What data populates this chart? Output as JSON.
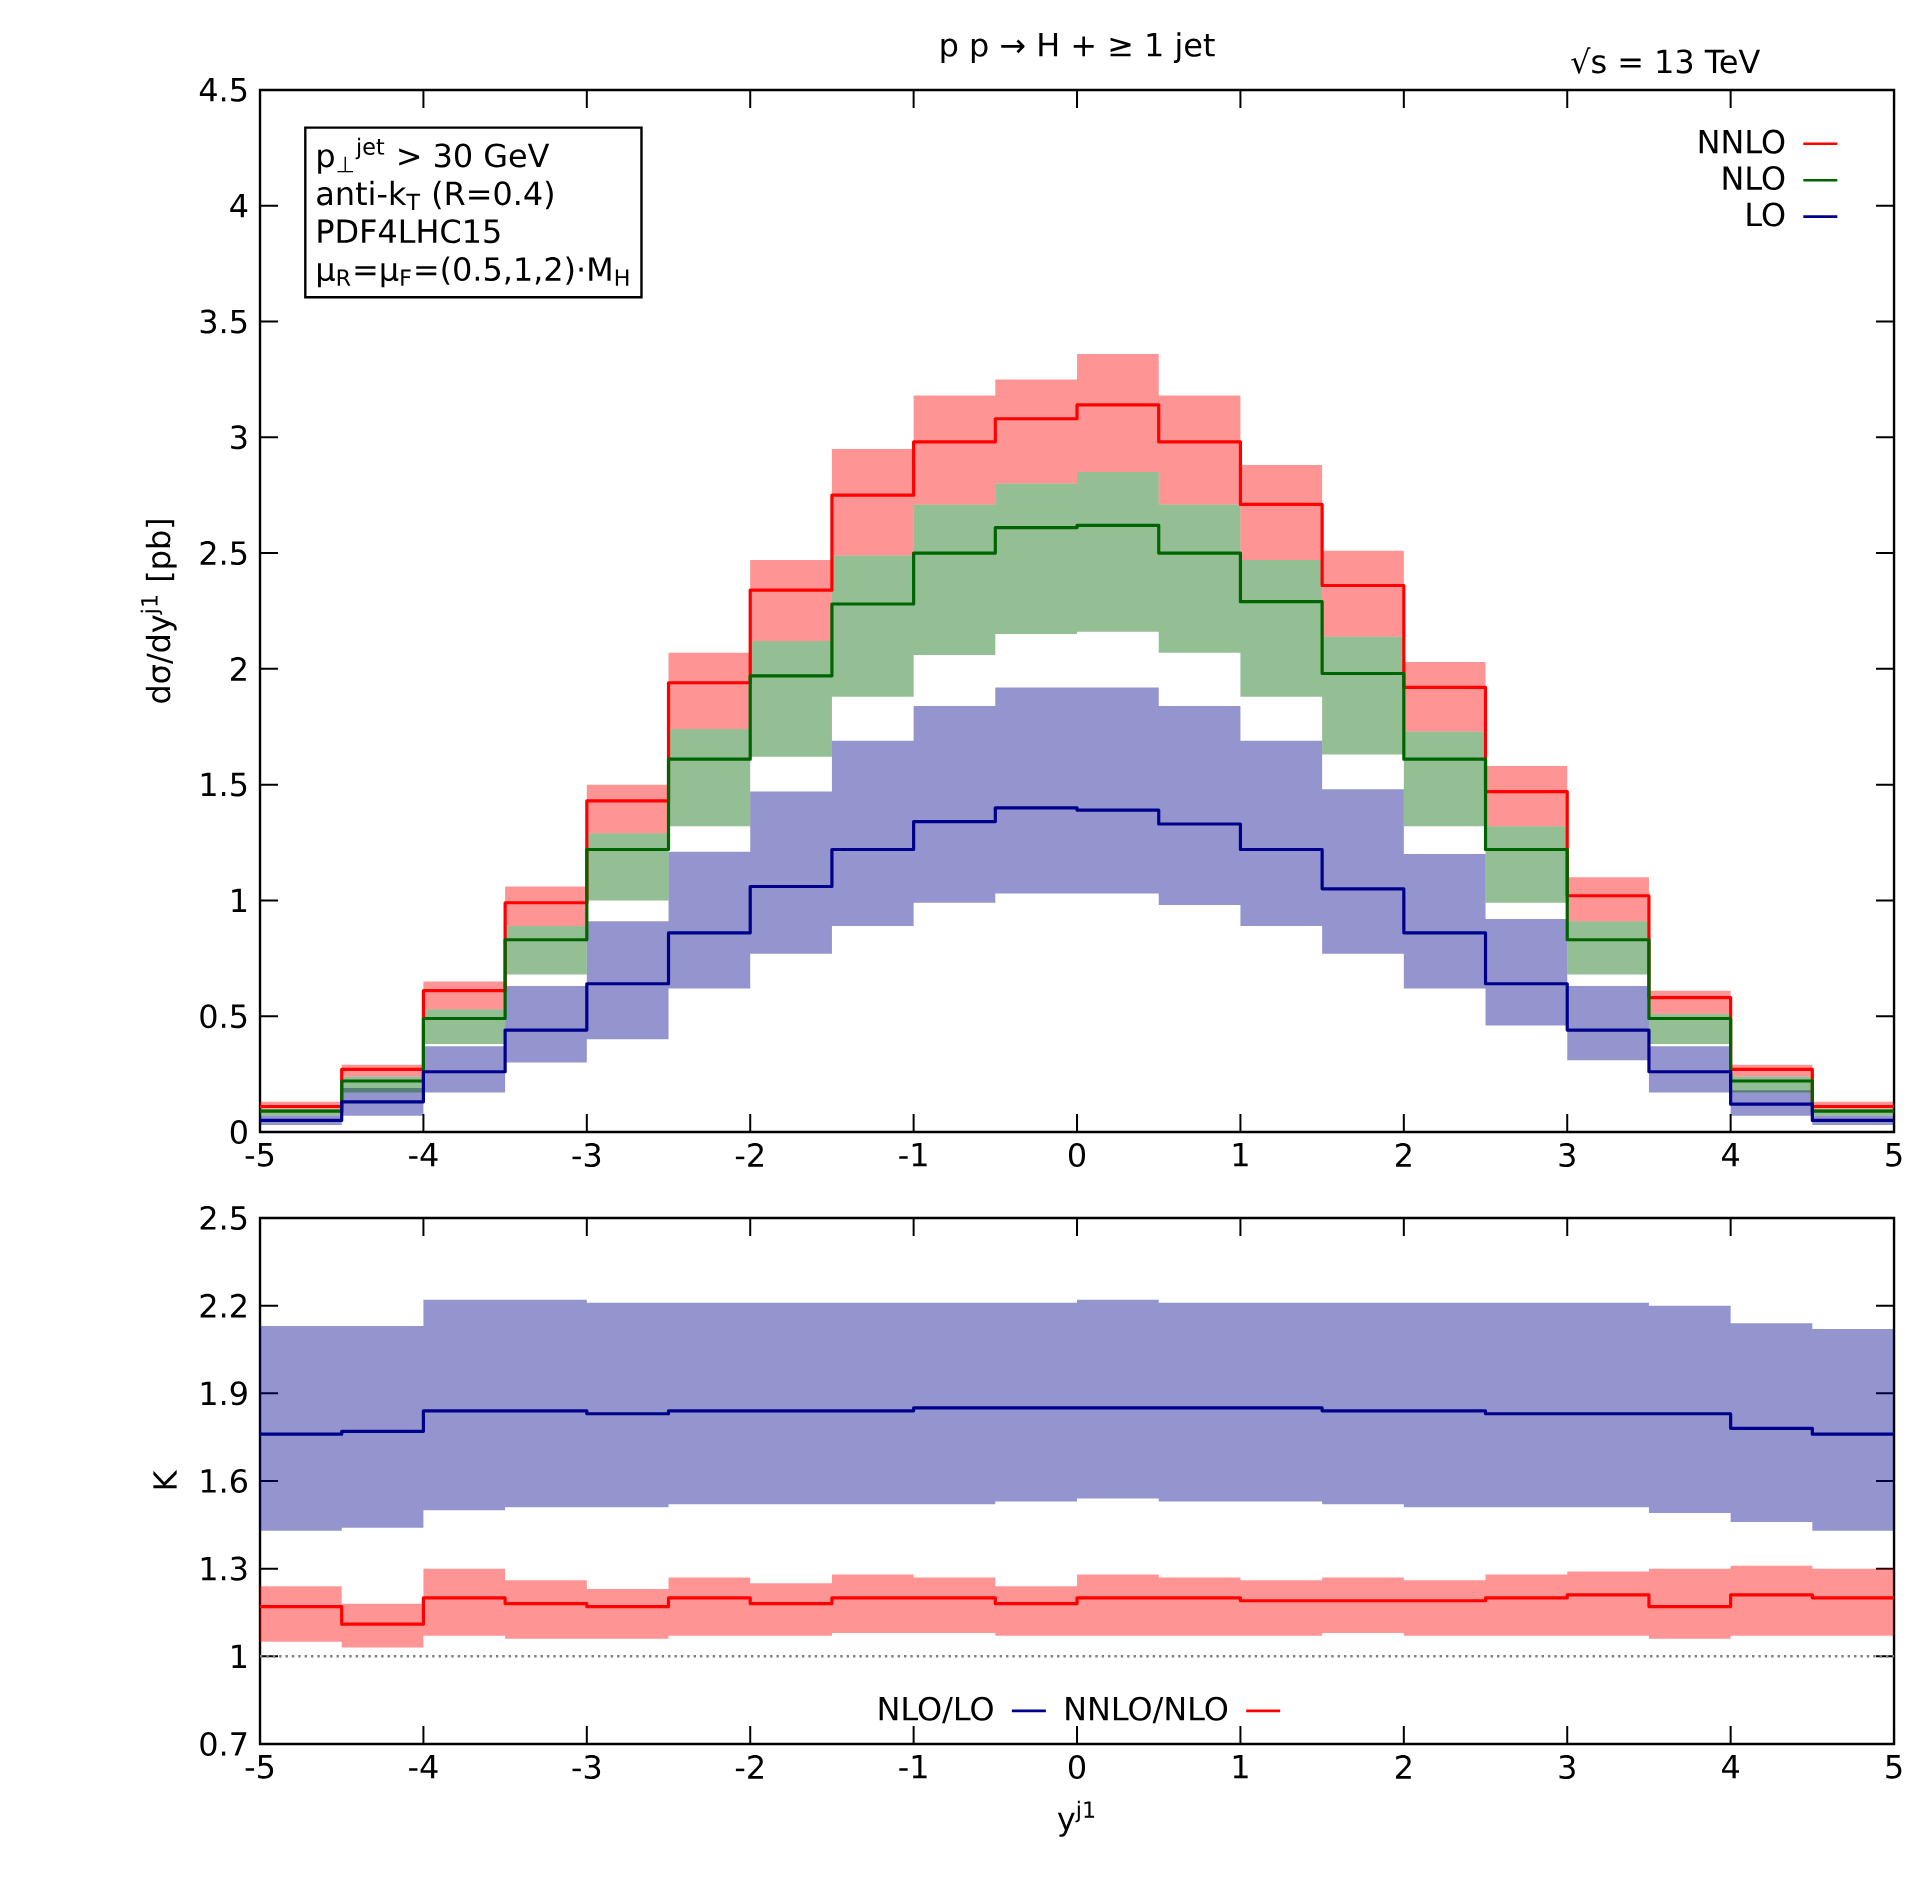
{
  "chart_data": [
    {
      "type": "step",
      "title": "p p → H + ≥ 1 jet",
      "ylabel": "dσ/dy$^{j1}$ [pb]",
      "annotations": [
        "√s  = 13 TeV",
        "p$_{⊥}$$^{jet}$ > 30 GeV",
        "anti-k$_{T}$   (R=0.4)",
        "PDF4LHC15",
        "μ$_{R}$=μ$_{F}$=(0.5,1,2)·M$_{H}$"
      ],
      "x": [
        -5,
        -4.5,
        -4,
        -3.5,
        -3,
        -2.5,
        -2,
        -1.5,
        -1,
        -0.5,
        0,
        0.5,
        1,
        1.5,
        2,
        2.5,
        3,
        3.5,
        4,
        4.5,
        5
      ],
      "series": [
        {
          "name": "NNLO",
          "color": "#ff0000",
          "values": [
            0.11,
            0.27,
            0.61,
            0.99,
            1.43,
            1.94,
            2.34,
            2.75,
            2.98,
            3.08,
            3.14,
            2.98,
            2.71,
            2.36,
            1.92,
            1.47,
            1.02,
            0.58,
            0.27,
            0.11,
            0.11
          ],
          "lower": [
            0.1,
            0.24,
            0.53,
            0.89,
            1.29,
            1.74,
            2.12,
            2.49,
            2.71,
            2.8,
            2.85,
            2.71,
            2.47,
            2.14,
            1.73,
            1.32,
            0.91,
            0.51,
            0.24,
            0.1,
            0.1
          ],
          "upper": [
            0.13,
            0.29,
            0.65,
            1.06,
            1.5,
            2.07,
            2.47,
            2.95,
            3.18,
            3.25,
            3.36,
            3.18,
            2.88,
            2.51,
            2.03,
            1.58,
            1.1,
            0.61,
            0.29,
            0.13,
            0.13
          ]
        },
        {
          "name": "NLO",
          "color": "#006400",
          "values": [
            0.09,
            0.22,
            0.49,
            0.83,
            1.22,
            1.61,
            1.97,
            2.28,
            2.5,
            2.61,
            2.62,
            2.5,
            2.29,
            1.98,
            1.61,
            1.22,
            0.83,
            0.49,
            0.22,
            0.09,
            0.09
          ],
          "lower": [
            0.07,
            0.17,
            0.38,
            0.68,
            1.0,
            1.32,
            1.62,
            1.88,
            2.06,
            2.15,
            2.16,
            2.07,
            1.88,
            1.63,
            1.32,
            0.99,
            0.68,
            0.38,
            0.17,
            0.07,
            0.07
          ],
          "upper": [
            0.1,
            0.24,
            0.53,
            0.89,
            1.29,
            1.74,
            2.12,
            2.49,
            2.71,
            2.8,
            2.85,
            2.71,
            2.47,
            2.14,
            1.73,
            1.32,
            0.91,
            0.51,
            0.24,
            0.1,
            0.1
          ]
        },
        {
          "name": "LO",
          "color": "#00008b",
          "values": [
            0.05,
            0.13,
            0.26,
            0.44,
            0.64,
            0.86,
            1.06,
            1.22,
            1.34,
            1.4,
            1.39,
            1.33,
            1.22,
            1.05,
            0.86,
            0.64,
            0.44,
            0.26,
            0.12,
            0.05,
            0.05
          ],
          "lower": [
            0.03,
            0.07,
            0.17,
            0.3,
            0.4,
            0.62,
            0.77,
            0.89,
            0.99,
            1.03,
            1.03,
            0.98,
            0.89,
            0.77,
            0.62,
            0.46,
            0.31,
            0.17,
            0.07,
            0.03,
            0.03
          ],
          "upper": [
            0.07,
            0.19,
            0.37,
            0.63,
            0.91,
            1.21,
            1.47,
            1.69,
            1.84,
            1.92,
            1.92,
            1.84,
            1.69,
            1.48,
            1.2,
            0.92,
            0.63,
            0.37,
            0.18,
            0.07,
            0.07
          ]
        }
      ],
      "xlim": [
        -5,
        5
      ],
      "xticks": [
        -5,
        -4,
        -3,
        -2,
        -1,
        0,
        1,
        2,
        3,
        4,
        5
      ],
      "ylim": [
        0,
        4.5
      ],
      "yticks": [
        0,
        0.5,
        1,
        1.5,
        2,
        2.5,
        3,
        3.5,
        4,
        4.5
      ],
      "legend": "top right"
    },
    {
      "type": "step",
      "xlabel": "y$^{j1}$",
      "ylabel": "K",
      "x": [
        -5,
        -4.5,
        -4,
        -3.5,
        -3,
        -2.5,
        -2,
        -1.5,
        -1,
        -0.5,
        0,
        0.5,
        1,
        1.5,
        2,
        2.5,
        3,
        3.5,
        4,
        4.5,
        5
      ],
      "series": [
        {
          "name": "NLO/LO",
          "color": "#00008b",
          "values": [
            1.76,
            1.77,
            1.84,
            1.84,
            1.83,
            1.84,
            1.84,
            1.84,
            1.85,
            1.85,
            1.85,
            1.85,
            1.85,
            1.84,
            1.84,
            1.83,
            1.83,
            1.83,
            1.78,
            1.76,
            1.76
          ],
          "lower": [
            1.43,
            1.44,
            1.5,
            1.51,
            1.51,
            1.52,
            1.52,
            1.52,
            1.52,
            1.53,
            1.54,
            1.53,
            1.53,
            1.52,
            1.51,
            1.51,
            1.51,
            1.49,
            1.46,
            1.43,
            1.43
          ],
          "upper": [
            2.13,
            2.13,
            2.22,
            2.22,
            2.21,
            2.21,
            2.21,
            2.21,
            2.21,
            2.21,
            2.22,
            2.21,
            2.21,
            2.21,
            2.21,
            2.21,
            2.21,
            2.2,
            2.14,
            2.12,
            2.12
          ]
        },
        {
          "name": "NNLO/NLO",
          "color": "#ff0000",
          "values": [
            1.17,
            1.11,
            1.2,
            1.18,
            1.17,
            1.2,
            1.18,
            1.2,
            1.2,
            1.18,
            1.2,
            1.2,
            1.19,
            1.19,
            1.19,
            1.2,
            1.21,
            1.17,
            1.21,
            1.2,
            1.2
          ],
          "lower": [
            1.05,
            1.03,
            1.07,
            1.06,
            1.06,
            1.07,
            1.07,
            1.08,
            1.08,
            1.07,
            1.07,
            1.07,
            1.07,
            1.08,
            1.07,
            1.07,
            1.07,
            1.06,
            1.07,
            1.07,
            1.07
          ],
          "upper": [
            1.24,
            1.18,
            1.3,
            1.26,
            1.23,
            1.27,
            1.25,
            1.28,
            1.27,
            1.24,
            1.28,
            1.27,
            1.26,
            1.27,
            1.26,
            1.28,
            1.29,
            1.3,
            1.31,
            1.3,
            1.3
          ]
        }
      ],
      "ref_lines": [
        {
          "axis": "y",
          "value": 1,
          "color": "#808080",
          "line_style": "dotted"
        }
      ],
      "xlim": [
        -5,
        5
      ],
      "xticks": [
        -5,
        -4,
        -3,
        -2,
        -1,
        0,
        1,
        2,
        3,
        4,
        5
      ],
      "ylim": [
        0.7,
        2.5
      ],
      "yticks": [
        0.7,
        1,
        1.3,
        1.6,
        1.9,
        2.2,
        2.5
      ],
      "legend": "bottom"
    }
  ]
}
